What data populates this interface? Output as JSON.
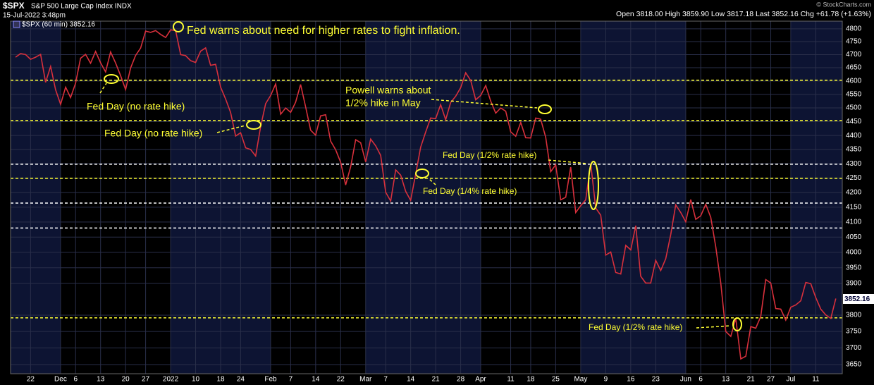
{
  "chart_data": {
    "type": "line",
    "symbol": "$SPX",
    "name": "S&P 500 Large Cap Index INDX",
    "date": "15-Jul-2022 3:48pm",
    "quote": "Open 3818.00  High 3859.90  Low 3817.18  Last 3852.16  Chg +61.78 (+1.63%)",
    "copyright": "© StockCharts.com",
    "last_tag": "3852.16",
    "log_scale": true,
    "grid": true,
    "ylim": [
      3623,
      4830
    ],
    "yticks": [
      3650,
      3700,
      3750,
      3800,
      3900,
      3950,
      4000,
      4050,
      4100,
      4150,
      4200,
      4250,
      4300,
      4350,
      4400,
      4450,
      4500,
      4550,
      4600,
      4650,
      4700,
      4750,
      4800
    ],
    "xlim": [
      -4,
      162.3
    ],
    "xticks": [
      {
        "value": 0,
        "label": "22"
      },
      {
        "value": 6,
        "label": "Dec"
      },
      {
        "value": 9,
        "label": "6"
      },
      {
        "value": 14,
        "label": "13"
      },
      {
        "value": 19,
        "label": "20"
      },
      {
        "value": 23,
        "label": "27"
      },
      {
        "value": 28,
        "label": "2022"
      },
      {
        "value": 33,
        "label": "10"
      },
      {
        "value": 38,
        "label": "18"
      },
      {
        "value": 42,
        "label": "24"
      },
      {
        "value": 48,
        "label": "Feb"
      },
      {
        "value": 52,
        "label": "7"
      },
      {
        "value": 57,
        "label": "14"
      },
      {
        "value": 62,
        "label": "22"
      },
      {
        "value": 67,
        "label": "Mar"
      },
      {
        "value": 71,
        "label": "7"
      },
      {
        "value": 76,
        "label": "14"
      },
      {
        "value": 81,
        "label": "21"
      },
      {
        "value": 86,
        "label": "28"
      },
      {
        "value": 90,
        "label": "Apr"
      },
      {
        "value": 96,
        "label": "11"
      },
      {
        "value": 100,
        "label": "18"
      },
      {
        "value": 105,
        "label": "25"
      },
      {
        "value": 110,
        "label": "May"
      },
      {
        "value": 115,
        "label": "9"
      },
      {
        "value": 120,
        "label": "16"
      },
      {
        "value": 125,
        "label": "23"
      },
      {
        "value": 131,
        "label": "Jun"
      },
      {
        "value": 134,
        "label": "6"
      },
      {
        "value": 139,
        "label": "13"
      },
      {
        "value": 144,
        "label": "21"
      },
      {
        "value": 148,
        "label": "27"
      },
      {
        "value": 152,
        "label": "Jul"
      },
      {
        "value": 157,
        "label": "11"
      }
    ],
    "levels": [
      {
        "value": 4603,
        "color": "#ffff33"
      },
      {
        "value": 4454,
        "color": "#ffff33"
      },
      {
        "value": 4298,
        "color": "#ffffff"
      },
      {
        "value": 4249,
        "color": "#ffff33"
      },
      {
        "value": 4164,
        "color": "#ffffff"
      },
      {
        "value": 4080,
        "color": "#ffffff"
      },
      {
        "value": 3792,
        "color": "#ffff33"
      }
    ],
    "annotations": [
      "Fed warns about need for higher rates to fight inflation.",
      "Fed Day (no rate hike)",
      "Fed Day (no rate hike)",
      "Powell warns about",
      "1/2% hike in May",
      "Fed Day (1/2% rate hike)",
      "Fed Day (1/4% rate hike)",
      "Fed Day (1/2% rate hike)"
    ],
    "x": [
      -3,
      -2,
      -1,
      0,
      1,
      2,
      3,
      4,
      5,
      6,
      7,
      8,
      9,
      10,
      11,
      12,
      13,
      14,
      15,
      16,
      17,
      18,
      19,
      20,
      21,
      22,
      23,
      24,
      25,
      26,
      27,
      28,
      29,
      30,
      31,
      32,
      33,
      34,
      35,
      36,
      37,
      38,
      39,
      40,
      41,
      42,
      43,
      44,
      45,
      46,
      47,
      48,
      49,
      50,
      51,
      52,
      53,
      54,
      55,
      56,
      57,
      58,
      59,
      60,
      61,
      62,
      63,
      64,
      65,
      66,
      67,
      68,
      69,
      70,
      71,
      72,
      73,
      74,
      75,
      76,
      77,
      78,
      79,
      80,
      81,
      82,
      83,
      84,
      85,
      86,
      87,
      88,
      89,
      90,
      91,
      92,
      93,
      94,
      95,
      96,
      97,
      98,
      99,
      100,
      101,
      102,
      103,
      104,
      105,
      106,
      107,
      108,
      109,
      110,
      111,
      112,
      113,
      114,
      115,
      116,
      117,
      118,
      119,
      120,
      121,
      122,
      123,
      124,
      125,
      126,
      127,
      128,
      129,
      130,
      131,
      132,
      133,
      134,
      135,
      136,
      137,
      138,
      139,
      140,
      141,
      142,
      143,
      144,
      145,
      146,
      147,
      148,
      149,
      150,
      151,
      152,
      153,
      154,
      155,
      156,
      157,
      158,
      159,
      160,
      161
    ],
    "series": [
      {
        "name": "$SPX (60 min) 3852.16",
        "color": "#d8303c",
        "values": [
          4690,
          4704,
          4700,
          4682,
          4690,
          4701,
          4595,
          4655,
          4567,
          4513,
          4577,
          4538,
          4591,
          4686,
          4701,
          4667,
          4712,
          4669,
          4634,
          4710,
          4668,
          4620,
          4568,
          4649,
          4697,
          4725,
          4791,
          4786,
          4793,
          4778,
          4766,
          4796,
          4793,
          4700,
          4696,
          4677,
          4670,
          4713,
          4726,
          4659,
          4663,
          4577,
          4533,
          4483,
          4398,
          4410,
          4356,
          4350,
          4327,
          4432,
          4516,
          4546,
          4589,
          4477,
          4500,
          4484,
          4521,
          4587,
          4504,
          4419,
          4401,
          4471,
          4475,
          4380,
          4349,
          4305,
          4226,
          4289,
          4385,
          4374,
          4306,
          4387,
          4363,
          4329,
          4201,
          4171,
          4278,
          4260,
          4204,
          4173,
          4263,
          4358,
          4412,
          4463,
          4461,
          4512,
          4457,
          4520,
          4543,
          4575,
          4631,
          4602,
          4530,
          4546,
          4583,
          4525,
          4481,
          4500,
          4488,
          4413,
          4397,
          4447,
          4392,
          4391,
          4463,
          4459,
          4394,
          4272,
          4296,
          4175,
          4184,
          4288,
          4132,
          4155,
          4175,
          4300,
          4147,
          4123,
          3991,
          4001,
          3935,
          3930,
          4023,
          4008,
          4088,
          3923,
          3901,
          3901,
          3974,
          3941,
          3979,
          4058,
          4158,
          4132,
          4101,
          4176,
          4109,
          4121,
          4160,
          4116,
          4018,
          3901,
          3750,
          3735,
          3790,
          3667,
          3675,
          3765,
          3760,
          3796,
          3912,
          3901,
          3821,
          3819,
          3785,
          3825,
          3832,
          3845,
          3903,
          3899,
          3855,
          3819,
          3801,
          3790,
          3852
        ]
      }
    ]
  }
}
